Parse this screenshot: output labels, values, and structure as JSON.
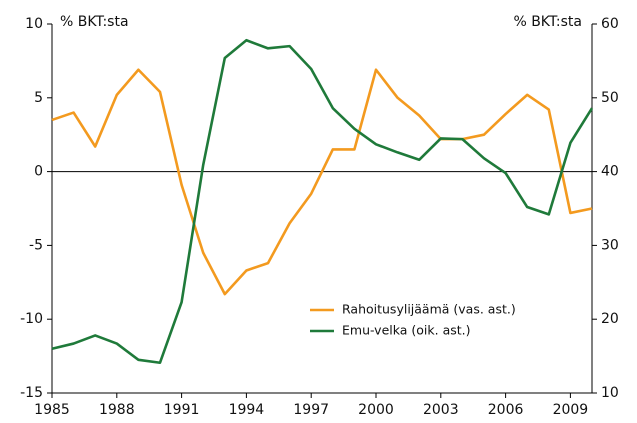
{
  "chart_data": {
    "type": "line",
    "y_label": "% BKT:sta",
    "y2_label": "% BKT:sta",
    "x": [
      1985,
      1986,
      1987,
      1988,
      1989,
      1990,
      1991,
      1992,
      1993,
      1994,
      1995,
      1996,
      1997,
      1998,
      1999,
      2000,
      2001,
      2002,
      2003,
      2004,
      2005,
      2006,
      2007,
      2008,
      2009,
      2010
    ],
    "xlim": [
      1985,
      2010
    ],
    "xticks": [
      1985,
      1988,
      1991,
      1994,
      1997,
      2000,
      2003,
      2006,
      2009
    ],
    "ylim": [
      -15,
      10
    ],
    "yticks": [
      -15,
      -10,
      -5,
      0,
      5,
      10
    ],
    "y2lim": [
      10,
      60
    ],
    "y2ticks": [
      10,
      20,
      30,
      40,
      50,
      60
    ],
    "legend": "lower center",
    "series": [
      {
        "name": "Rahoitusylijäämä (vas. ast.)",
        "color": "#f39a1f",
        "values": [
          3.5,
          4.0,
          1.7,
          5.2,
          6.9,
          5.4,
          -0.9,
          -5.5,
          -8.3,
          -6.7,
          -6.2,
          -3.5,
          -1.5,
          1.5,
          1.5,
          6.9,
          5.0,
          3.8,
          2.2,
          2.2,
          2.5,
          3.9,
          5.2,
          4.2,
          -2.8,
          -2.5
        ]
      },
      {
        "name": "Emu-velka (oik. ast.)",
        "color": "#1f7a3a",
        "axis": "y2",
        "values": [
          16.0,
          16.7,
          17.8,
          16.7,
          14.5,
          14.1,
          22.3,
          40.9,
          55.4,
          57.8,
          56.7,
          57.0,
          53.9,
          48.6,
          45.8,
          43.7,
          42.6,
          41.6,
          44.5,
          44.4,
          41.8,
          39.8,
          35.2,
          34.2,
          43.9,
          48.6
        ]
      }
    ]
  }
}
